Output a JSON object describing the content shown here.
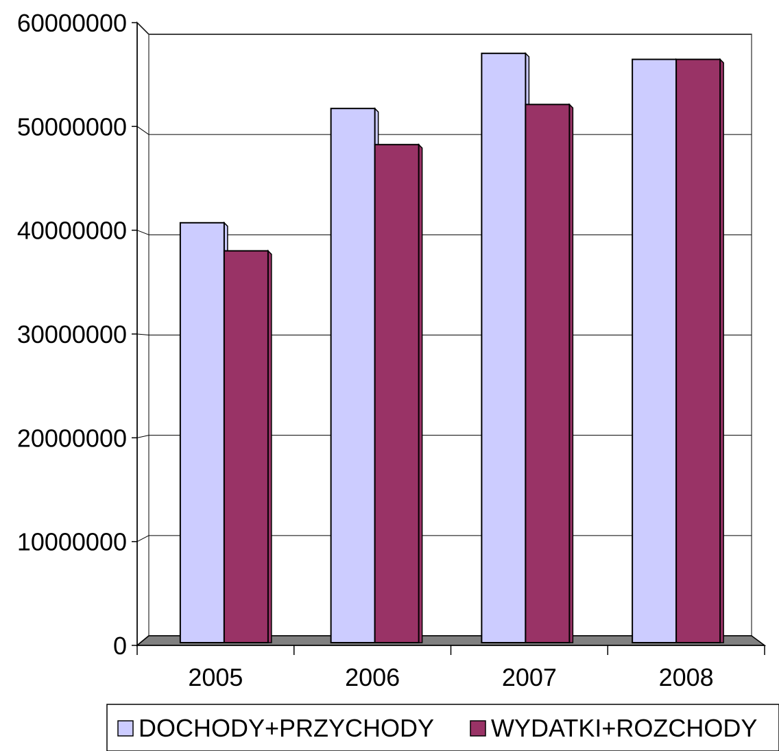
{
  "chart_data": {
    "type": "bar",
    "style": "3d-clustered-column",
    "categories": [
      "2005",
      "2006",
      "2007",
      "2008"
    ],
    "series": [
      {
        "name": "DOCHODY+PRZYCHODY",
        "color": "#ccccff",
        "values": [
          41200000,
          52600000,
          58100000,
          57500000
        ]
      },
      {
        "name": "WYDATKI+ROZCHODY",
        "color": "#993366",
        "values": [
          38400000,
          49000000,
          53000000,
          57500000
        ]
      }
    ],
    "yticks": [
      "0",
      "10000000",
      "20000000",
      "30000000",
      "40000000",
      "50000000",
      "60000000"
    ],
    "ylim": [
      0,
      60000000
    ],
    "grid": true,
    "legend_position": "bottom",
    "title": "",
    "xlabel": "",
    "ylabel": "",
    "colors": {
      "floor": "#808080",
      "gridline": "#000000",
      "bar_outline": "#000000"
    }
  }
}
